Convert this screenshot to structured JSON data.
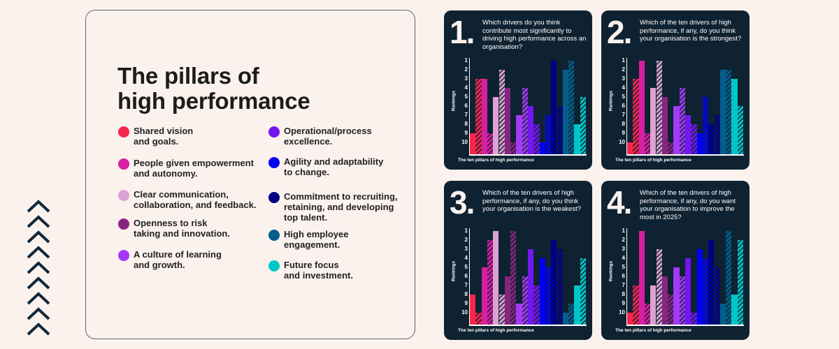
{
  "title": "The pillars of\nhigh performance",
  "pillars": [
    {
      "label": "Shared vision\nand goals.",
      "color": "#f8254c"
    },
    {
      "label": "People given empowerment\nand autonomy.",
      "color": "#d81ea3"
    },
    {
      "label": "Clear communication,\ncollaboration, and feedback.",
      "color": "#dca2d2"
    },
    {
      "label": "Openness to risk\ntaking and innovation.",
      "color": "#86257f"
    },
    {
      "label": "A culture of learning\nand growth.",
      "color": "#a23af7"
    },
    {
      "label": "Operational/process\nexcellence.",
      "color": "#7217ee"
    },
    {
      "label": "Agility and adaptability\nto change.",
      "color": "#0000f5"
    },
    {
      "label": "Commitment to recruiting,\nretaining, and developing\ntop talent.",
      "color": "#020085"
    },
    {
      "label": "High employee\nengagement.",
      "color": "#035e8c"
    },
    {
      "label": "Future focus\nand investment.",
      "color": "#00c6c8"
    }
  ],
  "chart_data": [
    {
      "type": "bar",
      "number": "1.",
      "title": "Which drivers do you think contribute most significantly to driving high performance across an organisation?",
      "xlabel": "The ten pillars of high performance",
      "ylabel": "Rankings",
      "yticks": [
        "1",
        "2",
        "3",
        "4",
        "5",
        "6",
        "7",
        "8",
        "9",
        "10"
      ],
      "ylim": [
        10,
        1
      ],
      "categories": [
        "Shared vision and goals",
        "People given empowerment and autonomy",
        "Clear communication, collaboration, and feedback",
        "Openness to risk taking and innovation",
        "A culture of learning and growth",
        "Operational/process excellence",
        "Agility and adaptability to change",
        "Commitment to recruiting, retaining, and developing top talent",
        "High employee engagement",
        "Future focus and investment"
      ],
      "series": [
        {
          "name": "solid",
          "values": [
            9,
            3,
            5,
            4,
            7,
            6,
            10,
            1,
            2,
            8
          ]
        },
        {
          "name": "hatched",
          "values": [
            3,
            9,
            2,
            10,
            4,
            8,
            7,
            6,
            1,
            5
          ]
        }
      ]
    },
    {
      "type": "bar",
      "number": "2.",
      "title": "Which of the ten drivers of high performance, if any, do you think your organisation is the strongest?",
      "xlabel": "The ten pillars of high performance",
      "ylabel": "Rankings",
      "yticks": [
        "1",
        "2",
        "3",
        "4",
        "5",
        "6",
        "7",
        "8",
        "9",
        "10"
      ],
      "ylim": [
        10,
        1
      ],
      "categories": [
        "Shared vision and goals",
        "People given empowerment and autonomy",
        "Clear communication, collaboration, and feedback",
        "Openness to risk taking and innovation",
        "A culture of learning and growth",
        "Operational/process excellence",
        "Agility and adaptability to change",
        "Commitment to recruiting, retaining, and developing top talent",
        "High employee engagement",
        "Future focus and investment"
      ],
      "series": [
        {
          "name": "solid",
          "values": [
            10,
            1,
            4,
            5,
            6,
            7,
            9,
            8,
            2,
            3
          ]
        },
        {
          "name": "hatched",
          "values": [
            3,
            9,
            1,
            10,
            4,
            8,
            5,
            7,
            2,
            6
          ]
        }
      ]
    },
    {
      "type": "bar",
      "number": "3.",
      "title": "Which of the ten drivers of high performance, if any, do you think your organisation is the weakest?",
      "xlabel": "The ten pillars of high performance",
      "ylabel": "Rankings",
      "yticks": [
        "1",
        "2",
        "3",
        "4",
        "5",
        "6",
        "7",
        "8",
        "9",
        "10"
      ],
      "ylim": [
        10,
        1
      ],
      "categories": [
        "Shared vision and goals",
        "People given empowerment and autonomy",
        "Clear communication, collaboration, and feedback",
        "Openness to risk taking and innovation",
        "A culture of learning and growth",
        "Operational/process excellence",
        "Agility and adaptability to change",
        "Commitment to recruiting, retaining, and developing top talent",
        "High employee engagement",
        "Future focus and investment"
      ],
      "series": [
        {
          "name": "solid",
          "values": [
            8,
            5,
            1,
            6,
            9,
            3,
            4,
            2,
            10,
            7
          ]
        },
        {
          "name": "hatched",
          "values": [
            10,
            2,
            8,
            1,
            6,
            7,
            5,
            3,
            9,
            4
          ]
        }
      ]
    },
    {
      "type": "bar",
      "number": "4.",
      "title": "Which of the ten drivers of high performance, if any, do you want your organisation to improve the most in 2025?",
      "xlabel": "The ten pillars of high performance",
      "ylabel": "Rankings",
      "yticks": [
        "1",
        "2",
        "3",
        "4",
        "5",
        "6",
        "7",
        "8",
        "9",
        "10"
      ],
      "ylim": [
        10,
        1
      ],
      "categories": [
        "Shared vision and goals",
        "People given empowerment and autonomy",
        "Clear communication, collaboration, and feedback",
        "Openness to risk taking and innovation",
        "A culture of learning and growth",
        "Operational/process excellence",
        "Agility and adaptability to change",
        "Commitment to recruiting, retaining, and developing top talent",
        "High employee engagement",
        "Future focus and investment"
      ],
      "series": [
        {
          "name": "solid",
          "values": [
            10,
            1,
            7,
            6,
            5,
            4,
            3,
            2,
            9,
            8
          ]
        },
        {
          "name": "hatched",
          "values": [
            7,
            9,
            3,
            8,
            6,
            10,
            4,
            5,
            1,
            2
          ]
        }
      ]
    }
  ],
  "decor": {
    "chevron_count": 9,
    "chevron_color": "#12283a"
  }
}
